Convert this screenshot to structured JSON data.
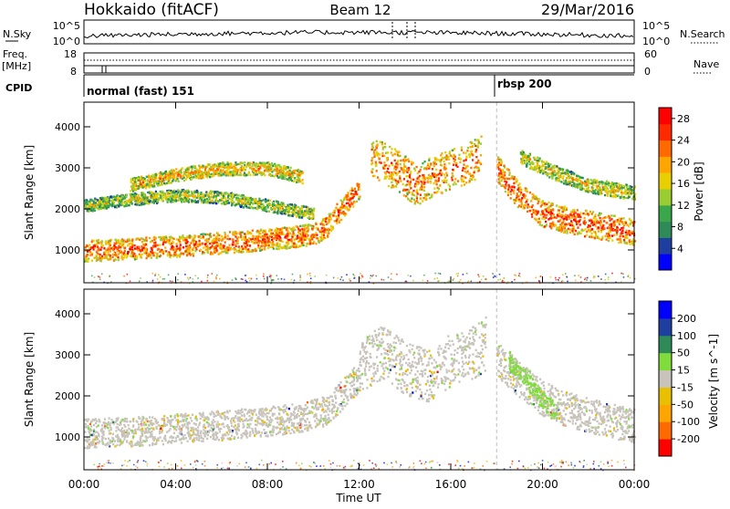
{
  "header": {
    "station": "Hokkaido (fitACF)",
    "beam": "Beam 12",
    "date": "29/Mar/2016"
  },
  "status_panels": {
    "nsky_label": "N.Sky",
    "nsky_ticks": [
      "10^5",
      "10^0"
    ],
    "nsearch_label": "N.Search",
    "nsearch_ticks": [
      "10^5",
      "10^0"
    ],
    "freq_label": "Freq.",
    "freq_unit": "[MHz]",
    "freq_ticks": [
      "18",
      "8"
    ],
    "nave_label": "Nave",
    "nave_ticks": [
      "60",
      "0"
    ],
    "cpid_label": "CPID",
    "cpid_modes": [
      {
        "name": "normal (fast) 151",
        "start_ut": 0.0,
        "end_ut": 18.0
      },
      {
        "name": "rbsp 200",
        "start_ut": 18.0,
        "end_ut": 24.0
      }
    ]
  },
  "chart_data": [
    {
      "type": "heatmap",
      "panel": "power",
      "ylabel": "Slant Range [km]",
      "xlabel": "Time UT",
      "x_ticks": [
        "00:00",
        "04:00",
        "08:00",
        "12:00",
        "16:00",
        "20:00",
        "00:00"
      ],
      "xlim": [
        0,
        24
      ],
      "ylim": [
        200,
        4600
      ],
      "y_ticks": [
        1000,
        2000,
        3000,
        4000
      ],
      "colorbar": {
        "label": "Power [dB]",
        "ticks": [
          4,
          8,
          12,
          16,
          20,
          24,
          28
        ],
        "range": [
          0,
          30
        ],
        "colors": [
          "#0000ff",
          "#1f3fa0",
          "#2e8b57",
          "#3aa84a",
          "#9acd32",
          "#e8d000",
          "#ffa500",
          "#ff6a00",
          "#ff2a00",
          "#ff0000"
        ]
      },
      "bands": [
        {
          "t": [
            0.0,
            1.0,
            3.0,
            5.0,
            7.0,
            9.0,
            10.0,
            10.6,
            11.0,
            11.5,
            12.0
          ],
          "r": [
            1000,
            1020,
            1080,
            1150,
            1230,
            1330,
            1400,
            1600,
            1900,
            2200,
            2500
          ],
          "width": 260,
          "level": 25
        },
        {
          "t": [
            0.0,
            2.0,
            4.0,
            6.0,
            7.5,
            9.0,
            10.0
          ],
          "r": [
            2100,
            2250,
            2350,
            2300,
            2150,
            2000,
            1900
          ],
          "width": 150,
          "level": 16
        },
        {
          "t": [
            2.0,
            4.0,
            6.0,
            8.0,
            9.5
          ],
          "r": [
            2600,
            2850,
            3000,
            3000,
            2800
          ],
          "width": 160,
          "level": 20
        },
        {
          "t": [
            12.5,
            13.5,
            14.5,
            15.5,
            16.5,
            17.3
          ],
          "r": [
            3300,
            3000,
            2600,
            2900,
            3100,
            3300
          ],
          "width": 500,
          "level": 24
        },
        {
          "t": [
            18.0,
            19.0,
            20.0,
            21.0,
            22.0,
            23.0,
            24.0
          ],
          "r": [
            3000,
            2300,
            1900,
            1750,
            1650,
            1550,
            1450
          ],
          "width": 320,
          "level": 26
        },
        {
          "t": [
            19.0,
            20.5,
            22.0,
            24.0
          ],
          "r": [
            3300,
            2900,
            2600,
            2400
          ],
          "width": 180,
          "level": 18
        }
      ]
    },
    {
      "type": "heatmap",
      "panel": "velocity",
      "ylabel": "Slant Range [km]",
      "xlabel": "Time UT",
      "x_ticks": [
        "00:00",
        "04:00",
        "08:00",
        "12:00",
        "16:00",
        "20:00",
        "00:00"
      ],
      "xlim": [
        0,
        24
      ],
      "ylim": [
        200,
        4600
      ],
      "y_ticks": [
        1000,
        2000,
        3000,
        4000
      ],
      "colorbar": {
        "label": "Velocity [m s^-1]",
        "ticks": [
          -200,
          -100,
          -50,
          -15,
          15,
          50,
          100,
          200
        ],
        "colors": [
          "#ff0000",
          "#ff6a00",
          "#ffa500",
          "#e8c000",
          "#c8c4bc",
          "#7fdc3a",
          "#2e8b57",
          "#1f3fa0",
          "#0000ff"
        ]
      },
      "bands": [
        {
          "t": [
            0.0,
            2.0,
            4.0,
            6.0,
            8.0,
            9.5,
            10.5,
            11.0,
            11.5,
            12.0
          ],
          "r": [
            1100,
            1150,
            1220,
            1300,
            1400,
            1500,
            1650,
            1900,
            2200,
            2500
          ],
          "width": 360,
          "level": 0
        },
        {
          "t": [
            12.0,
            13.0,
            14.0,
            15.0,
            16.0,
            17.0,
            17.5
          ],
          "r": [
            2700,
            3100,
            2700,
            2500,
            2900,
            3100,
            3300
          ],
          "width": 650,
          "level": 0
        },
        {
          "t": [
            18.0,
            19.0,
            20.0,
            21.0,
            22.0,
            23.0,
            24.0
          ],
          "r": [
            2900,
            2400,
            1950,
            1700,
            1550,
            1400,
            1300
          ],
          "width": 420,
          "level": 0
        },
        {
          "t": [
            18.5,
            19.3,
            20.0,
            20.6
          ],
          "r": [
            2900,
            2400,
            1900,
            1600
          ],
          "width": 220,
          "level": 30
        }
      ]
    }
  ]
}
